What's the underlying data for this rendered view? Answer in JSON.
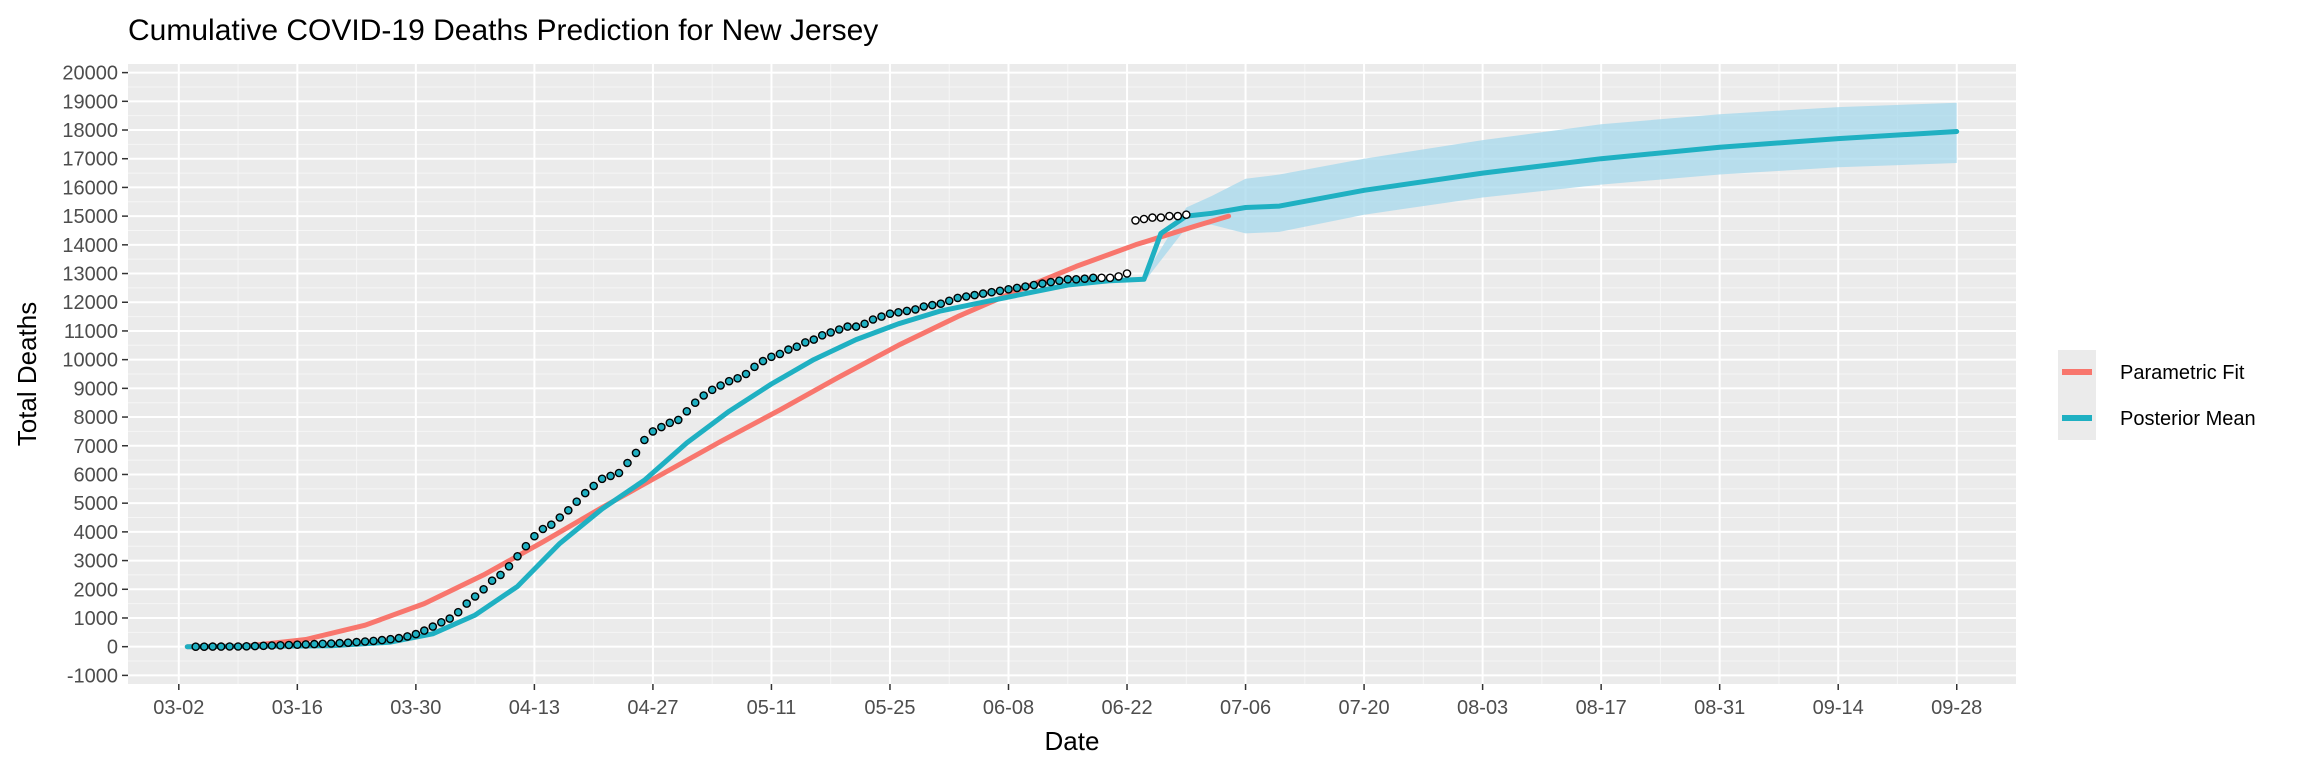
{
  "chart_data": {
    "type": "line",
    "title": "Cumulative COVID-19 Deaths Prediction for New Jersey",
    "xlabel": "Date",
    "ylabel": "Total Deaths",
    "x_axis": {
      "ticks": [
        "03-02",
        "03-16",
        "03-30",
        "04-13",
        "04-27",
        "05-11",
        "05-25",
        "06-08",
        "06-22",
        "07-06",
        "07-20",
        "08-03",
        "08-17",
        "08-31",
        "09-14",
        "09-28"
      ],
      "range": [
        "2020-02-25",
        "2020-10-05"
      ]
    },
    "ylim": [
      -1300,
      20300
    ],
    "yticks": [
      -1000,
      0,
      1000,
      2000,
      3000,
      4000,
      5000,
      6000,
      7000,
      8000,
      9000,
      10000,
      11000,
      12000,
      13000,
      14000,
      15000,
      16000,
      17000,
      18000,
      19000,
      20000
    ],
    "grid": true,
    "legend_position": "right",
    "colors": {
      "parametric_fit": "#F8766D",
      "posterior_mean": "#1fb0c2",
      "band": "#a6d8ec",
      "panel": "#ebebeb",
      "observed_fill": "#1fb0c2"
    },
    "series": [
      {
        "name": "Parametric Fit",
        "x": [
          "2020-03-03",
          "2020-03-10",
          "2020-03-17",
          "2020-03-24",
          "2020-03-31",
          "2020-04-07",
          "2020-04-14",
          "2020-04-21",
          "2020-04-28",
          "2020-05-05",
          "2020-05-12",
          "2020-05-19",
          "2020-05-26",
          "2020-06-02",
          "2020-06-09",
          "2020-06-16",
          "2020-06-23",
          "2020-06-30",
          "2020-07-04"
        ],
        "y": [
          0,
          20,
          250,
          750,
          1500,
          2500,
          3650,
          4850,
          6000,
          7150,
          8250,
          9400,
          10500,
          11500,
          12400,
          13250,
          14000,
          14650,
          15000
        ]
      },
      {
        "name": "Posterior Mean",
        "x": [
          "2020-03-03",
          "2020-03-20",
          "2020-03-27",
          "2020-04-01",
          "2020-04-06",
          "2020-04-11",
          "2020-04-16",
          "2020-04-21",
          "2020-04-26",
          "2020-05-01",
          "2020-05-06",
          "2020-05-11",
          "2020-05-16",
          "2020-05-21",
          "2020-05-26",
          "2020-05-31",
          "2020-06-05",
          "2020-06-10",
          "2020-06-15",
          "2020-06-20",
          "2020-06-24",
          "2020-06-26",
          "2020-06-29",
          "2020-07-02",
          "2020-07-06",
          "2020-07-10",
          "2020-07-20",
          "2020-08-03",
          "2020-08-17",
          "2020-08-31",
          "2020-09-14",
          "2020-09-28"
        ],
        "y": [
          0,
          30,
          160,
          450,
          1100,
          2100,
          3600,
          4800,
          5800,
          7100,
          8200,
          9150,
          10000,
          10700,
          11250,
          11700,
          12000,
          12300,
          12600,
          12750,
          12800,
          14400,
          15000,
          15100,
          15300,
          15350,
          15900,
          16500,
          17000,
          17400,
          17700,
          17950
        ]
      }
    ],
    "band": {
      "x": [
        "2020-06-24",
        "2020-06-29",
        "2020-07-02",
        "2020-07-06",
        "2020-07-10",
        "2020-07-20",
        "2020-08-03",
        "2020-08-17",
        "2020-08-31",
        "2020-09-14",
        "2020-09-28"
      ],
      "lower": [
        12700,
        14600,
        14700,
        14400,
        14450,
        15050,
        15650,
        16100,
        16450,
        16700,
        16850
      ],
      "upper": [
        12900,
        15300,
        15700,
        16300,
        16450,
        17000,
        17650,
        18200,
        18550,
        18800,
        18950
      ]
    },
    "observed": {
      "start": "2020-03-04",
      "values": [
        0,
        1,
        2,
        3,
        5,
        8,
        12,
        20,
        30,
        40,
        50,
        60,
        70,
        80,
        90,
        100,
        110,
        125,
        140,
        160,
        180,
        200,
        230,
        260,
        300,
        360,
        440,
        560,
        700,
        850,
        980,
        1200,
        1500,
        1750,
        2000,
        2300,
        2500,
        2800,
        3150,
        3500,
        3850,
        4100,
        4250,
        4500,
        4750,
        5050,
        5350,
        5600,
        5850,
        5950,
        6050,
        6400,
        6750,
        7200,
        7500,
        7650,
        7800,
        7900,
        8200,
        8500,
        8750,
        8950,
        9100,
        9250,
        9350,
        9500,
        9750,
        9950,
        10100,
        10200,
        10350,
        10450,
        10600,
        10700,
        10850,
        10950,
        11050,
        11150,
        11150,
        11250,
        11400,
        11500,
        11600,
        11650,
        11700,
        11750,
        11850,
        11900,
        11950,
        12050,
        12150,
        12200,
        12250,
        12300,
        12350,
        12400,
        12450,
        12500,
        12550,
        12600,
        12650,
        12700,
        12750,
        12800,
        12800,
        12820,
        12850,
        12850,
        12850,
        12900,
        13000,
        14850,
        14900,
        14950,
        14950,
        15000,
        15000,
        15050
      ],
      "fill_until_index": 106
    }
  }
}
